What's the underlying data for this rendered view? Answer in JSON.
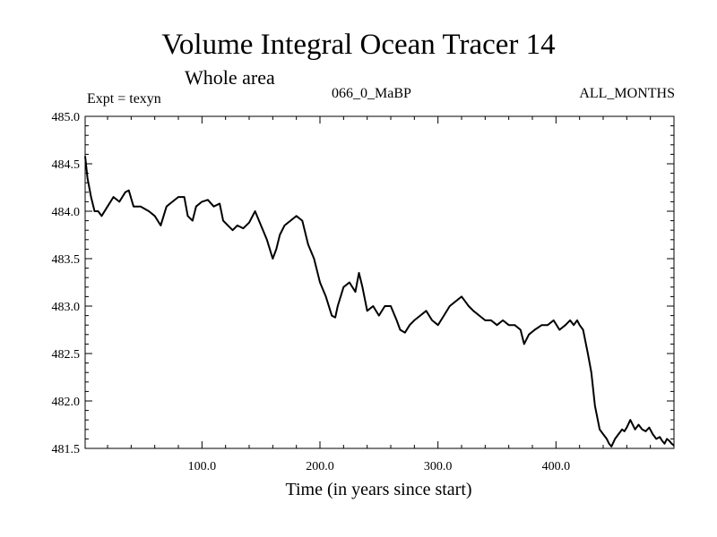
{
  "chart_data": {
    "type": "line",
    "title": "Volume Integral Ocean Tracer 14",
    "subtitle": "Whole area",
    "annotations": {
      "left": "Expt = texyn",
      "center": "066_0_MaBP",
      "right": "ALL_MONTHS"
    },
    "xlabel": "Time (in years since start)",
    "ylabel": "",
    "xlim": [
      1,
      500
    ],
    "ylim": [
      481.5,
      485.0
    ],
    "xticks": [
      100,
      200,
      300,
      400
    ],
    "xtick_labels": [
      "100.0",
      "200.0",
      "300.0",
      "400.0"
    ],
    "yticks": [
      481.5,
      482.0,
      482.5,
      483.0,
      483.5,
      484.0,
      484.5,
      485.0
    ],
    "ytick_labels": [
      "481.5",
      "482.0",
      "482.5",
      "483.0",
      "483.5",
      "484.0",
      "484.5",
      "485.0"
    ],
    "grid": false,
    "series": [
      {
        "x": [
          1,
          3,
          6,
          9,
          12,
          15,
          20,
          25,
          30,
          35,
          38,
          42,
          48,
          55,
          60,
          65,
          70,
          75,
          80,
          85,
          88,
          92,
          95,
          100,
          105,
          110,
          115,
          118,
          122,
          126,
          130,
          135,
          140,
          145,
          150,
          155,
          160,
          163,
          166,
          170,
          175,
          180,
          185,
          190,
          195,
          200,
          205,
          210,
          213,
          215,
          220,
          225,
          230,
          233,
          236,
          240,
          245,
          250,
          255,
          260,
          265,
          268,
          272,
          276,
          280,
          285,
          290,
          295,
          300,
          305,
          310,
          315,
          320,
          323,
          326,
          330,
          335,
          340,
          345,
          350,
          355,
          360,
          365,
          370,
          373,
          377,
          382,
          388,
          393,
          398,
          403,
          408,
          412,
          415,
          418,
          420,
          423,
          427,
          430,
          433,
          437,
          440,
          443,
          445,
          447,
          450,
          453,
          456,
          458,
          460,
          463,
          467,
          470,
          473,
          476,
          479,
          482,
          485,
          488,
          490,
          492,
          494,
          496,
          498,
          500
        ],
        "y": [
          484.58,
          484.35,
          484.15,
          484.0,
          484.0,
          483.95,
          484.05,
          484.15,
          484.1,
          484.2,
          484.22,
          484.05,
          484.05,
          484.0,
          483.95,
          483.85,
          484.05,
          484.1,
          484.15,
          484.15,
          483.95,
          483.9,
          484.05,
          484.1,
          484.12,
          484.05,
          484.08,
          483.9,
          483.85,
          483.8,
          483.85,
          483.82,
          483.88,
          484.0,
          483.85,
          483.7,
          483.5,
          483.6,
          483.75,
          483.85,
          483.9,
          483.95,
          483.9,
          483.65,
          483.5,
          483.25,
          483.1,
          482.9,
          482.88,
          483.0,
          483.2,
          483.25,
          483.15,
          483.35,
          483.2,
          482.95,
          483.0,
          482.9,
          483.0,
          483.0,
          482.85,
          482.75,
          482.72,
          482.8,
          482.85,
          482.9,
          482.95,
          482.85,
          482.8,
          482.9,
          483.0,
          483.05,
          483.1,
          483.05,
          483.0,
          482.95,
          482.9,
          482.85,
          482.85,
          482.8,
          482.85,
          482.8,
          482.8,
          482.75,
          482.6,
          482.7,
          482.75,
          482.8,
          482.8,
          482.85,
          482.75,
          482.8,
          482.85,
          482.8,
          482.85,
          482.8,
          482.75,
          482.5,
          482.3,
          481.95,
          481.7,
          481.65,
          481.6,
          481.55,
          481.52,
          481.6,
          481.65,
          481.7,
          481.68,
          481.72,
          481.8,
          481.7,
          481.75,
          481.7,
          481.68,
          481.72,
          481.65,
          481.6,
          481.62,
          481.58,
          481.55,
          481.6,
          481.58,
          481.55,
          481.53
        ]
      }
    ]
  }
}
